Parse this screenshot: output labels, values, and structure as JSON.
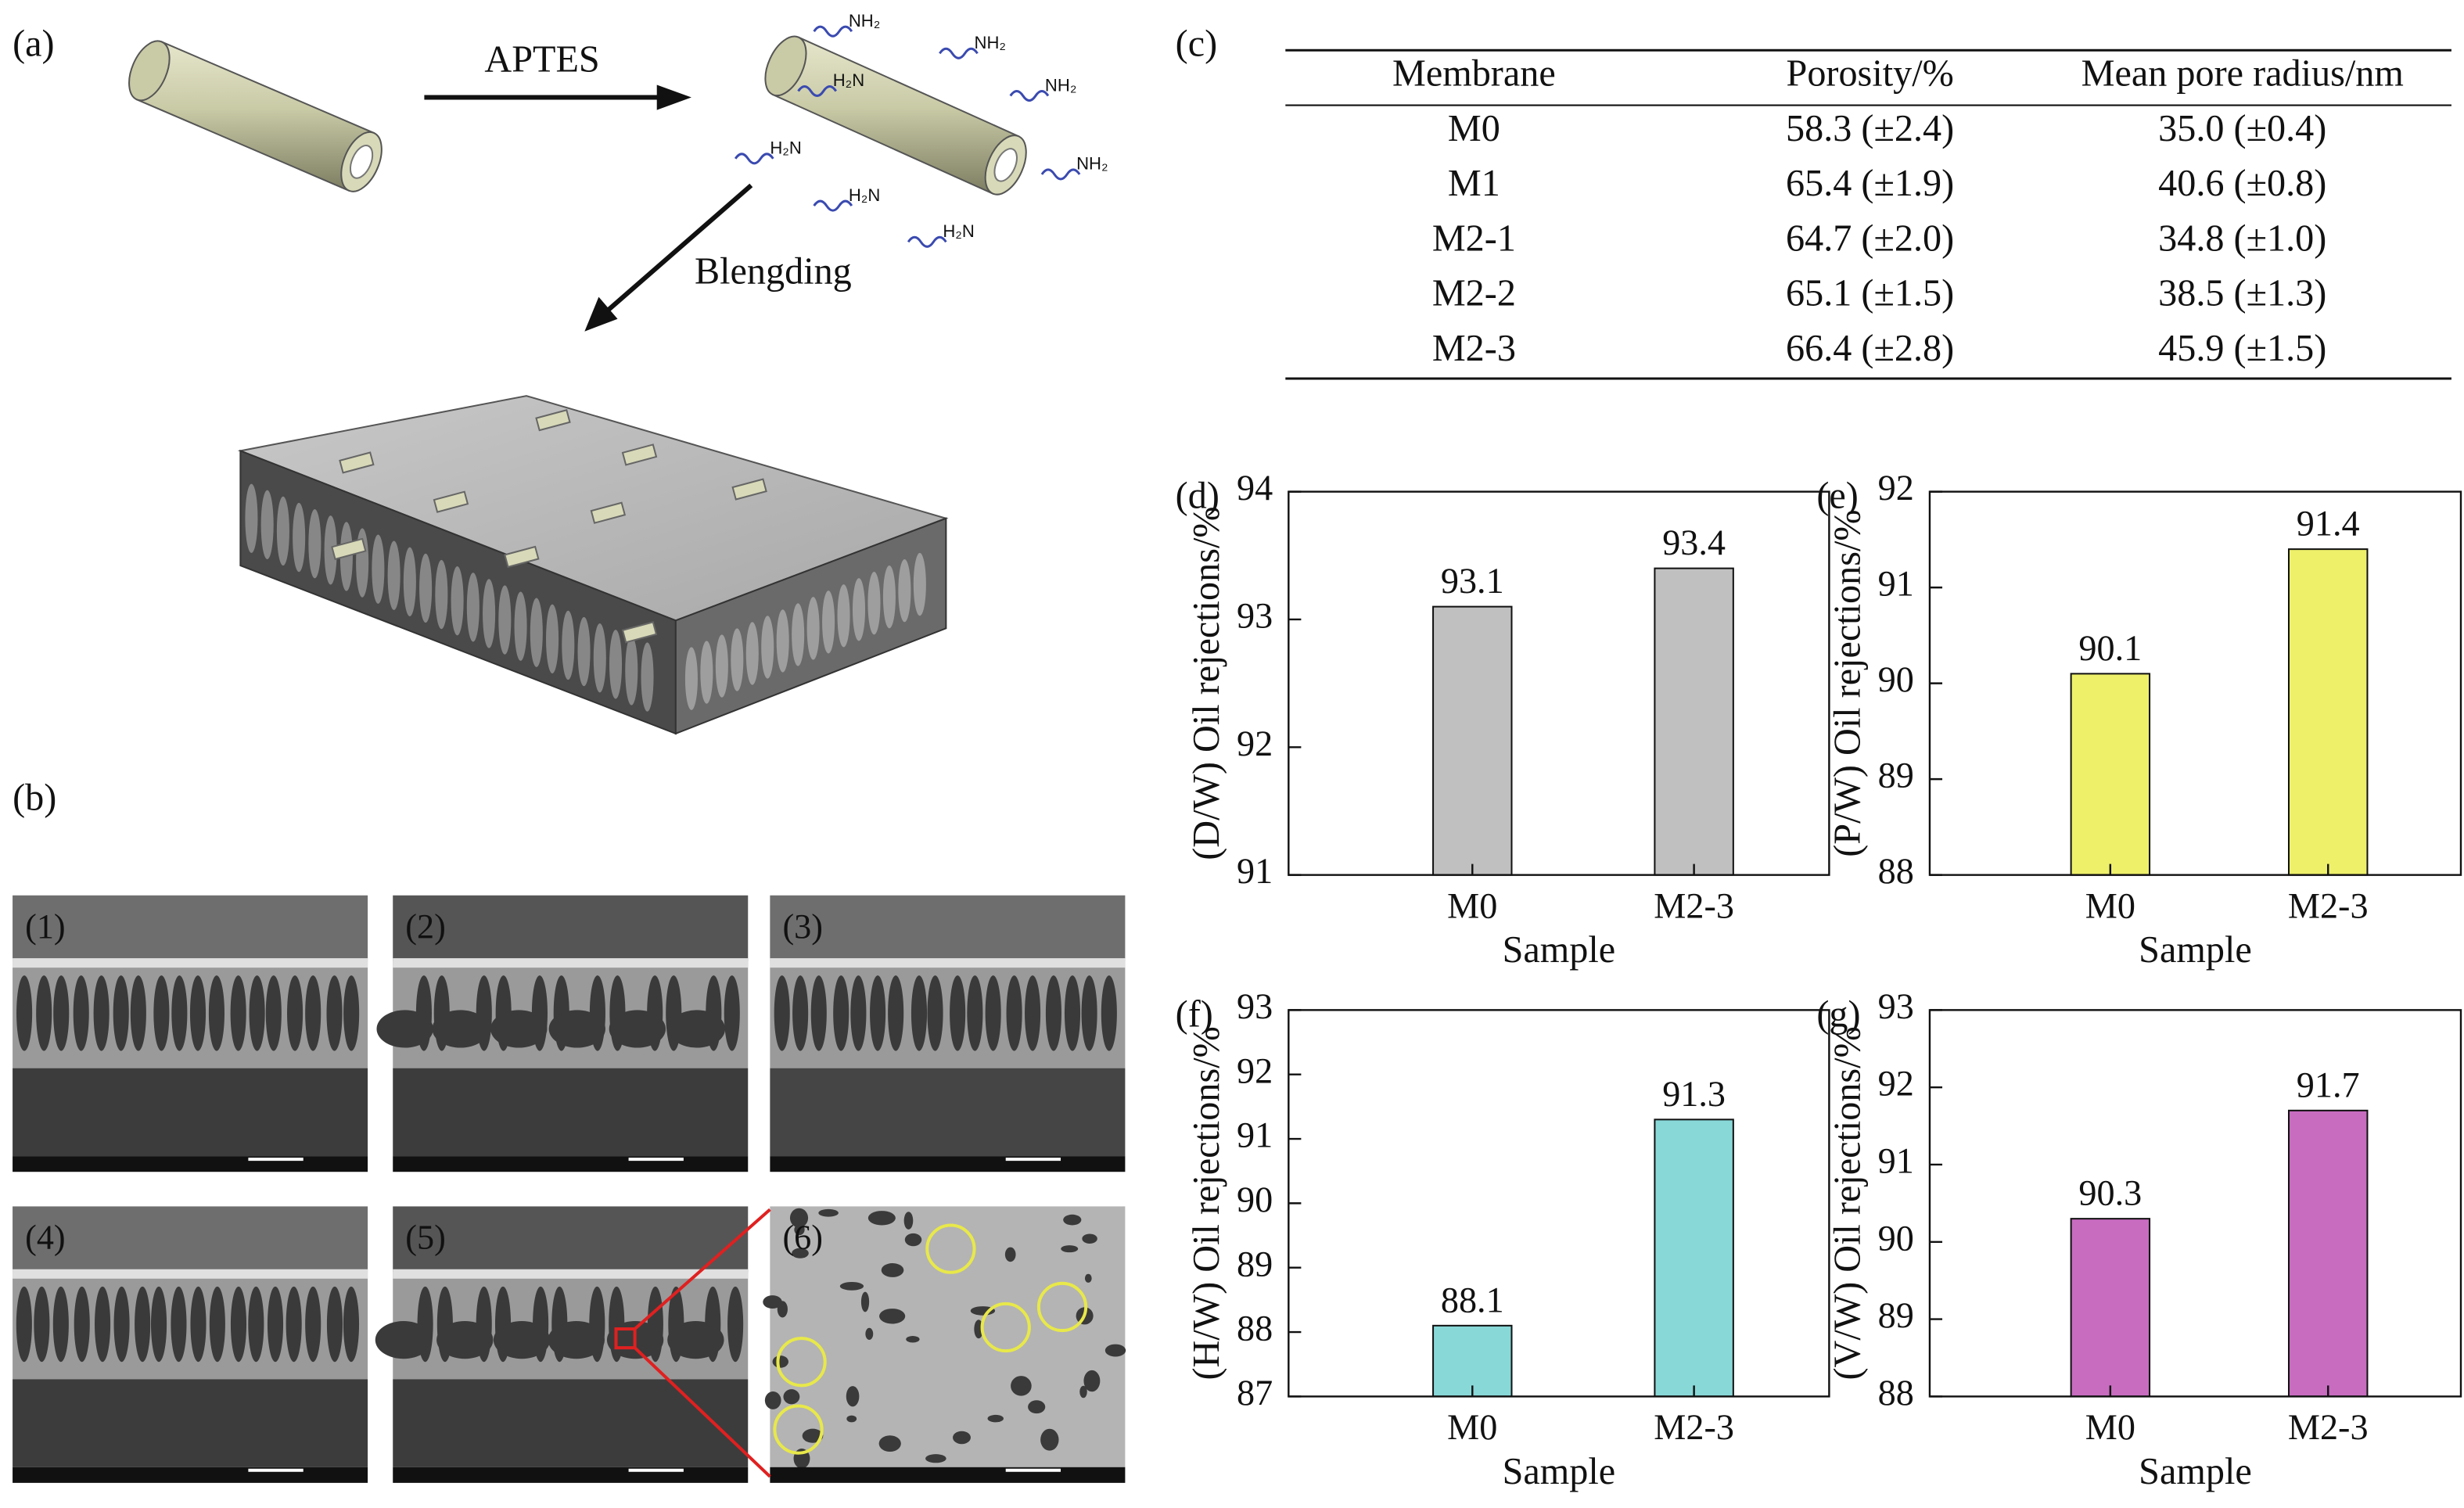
{
  "panels": {
    "a": "(a)",
    "b": "(b)",
    "c": "(c)"
  },
  "diagram": {
    "reagent": "APTES",
    "step": "Blengding",
    "labels": [
      "NH₂",
      "NH₂",
      "H₂N",
      "NH₂",
      "H₂N",
      "H₂N",
      "NH₂",
      "H₂N"
    ]
  },
  "micrographs": [
    "(1)",
    "(2)",
    "(3)",
    "(4)",
    "(5)",
    "(6)"
  ],
  "table": {
    "header": [
      "Membrane",
      "Porosity/%",
      "Mean pore radius/nm"
    ],
    "rows": [
      [
        "M0",
        "58.3 (±2.4)",
        "35.0 (±0.4)"
      ],
      [
        "M1",
        "65.4 (±1.9)",
        "40.6 (±0.8)"
      ],
      [
        "M2-1",
        "64.7 (±2.0)",
        "34.8 (±1.0)"
      ],
      [
        "M2-2",
        "65.1 (±1.5)",
        "38.5 (±1.3)"
      ],
      [
        "M2-3",
        "66.4 (±2.8)",
        "45.9 (±1.5)"
      ]
    ]
  },
  "chart_data": [
    {
      "type": "bar",
      "label": "(d)",
      "ylabel": "(D/W) Oil rejections/%",
      "xlabel": "Sample",
      "categories": [
        "M0",
        "M2-3"
      ],
      "values": [
        93.1,
        93.4
      ],
      "color": "#c0c0c0",
      "ylim": [
        91,
        94
      ],
      "yticks": [
        91,
        92,
        93,
        94
      ]
    },
    {
      "type": "bar",
      "label": "(e)",
      "ylabel": "(P/W) Oil rejections/%",
      "xlabel": "Sample",
      "categories": [
        "M0",
        "M2-3"
      ],
      "values": [
        90.1,
        91.4
      ],
      "color": "#eef06a",
      "ylim": [
        88,
        92
      ],
      "yticks": [
        88,
        89,
        90,
        91,
        92
      ]
    },
    {
      "type": "bar",
      "label": "(f)",
      "ylabel": "(H/W) Oil rejections/%",
      "xlabel": "Sample",
      "categories": [
        "M0",
        "M2-3"
      ],
      "values": [
        88.1,
        91.3
      ],
      "color": "#88d8d8",
      "ylim": [
        87,
        93
      ],
      "yticks": [
        87,
        88,
        89,
        90,
        91,
        92,
        93
      ]
    },
    {
      "type": "bar",
      "label": "(g)",
      "ylabel": "(V/W) Oil rejections/%",
      "xlabel": "Sample",
      "categories": [
        "M0",
        "M2-3"
      ],
      "values": [
        90.3,
        91.7
      ],
      "color": "#c86cc0",
      "ylim": [
        88,
        93
      ],
      "yticks": [
        88,
        89,
        90,
        91,
        92,
        93
      ]
    }
  ]
}
